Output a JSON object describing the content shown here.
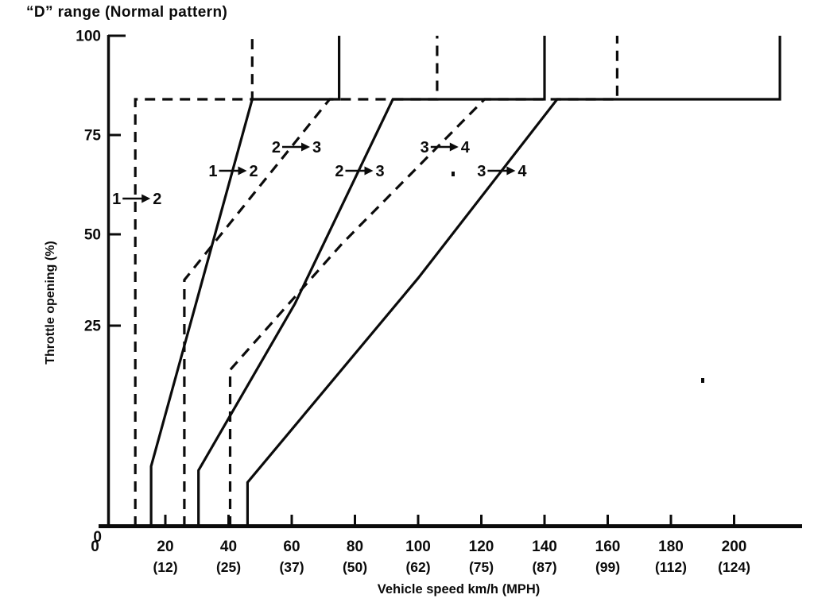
{
  "title": "“D” range (Normal pattern)",
  "colors": {
    "ink": "#0b0b0b",
    "paper": "#ffffff"
  },
  "chart_data": {
    "type": "line",
    "title": "“D” range (Normal pattern)",
    "xlabel": "Vehicle speed km/h (MPH)",
    "ylabel": "Throttle opening (%)",
    "xlim": [
      0,
      220
    ],
    "ylim": [
      0,
      100
    ],
    "grid": false,
    "legend": null,
    "x_ticks": [
      {
        "kmh": 0,
        "mph": null
      },
      {
        "kmh": 20,
        "mph": 12
      },
      {
        "kmh": 40,
        "mph": 25
      },
      {
        "kmh": 60,
        "mph": 37
      },
      {
        "kmh": 80,
        "mph": 50
      },
      {
        "kmh": 100,
        "mph": 62
      },
      {
        "kmh": 120,
        "mph": 75
      },
      {
        "kmh": 140,
        "mph": 87
      },
      {
        "kmh": 160,
        "mph": 99
      },
      {
        "kmh": 180,
        "mph": 112
      },
      {
        "kmh": 200,
        "mph": 124
      }
    ],
    "y_ticks": [
      25,
      50,
      75,
      100
    ],
    "y_origin_label": "0",
    "wot_throttle_pct": 84,
    "kickdown_top_pct": 100,
    "series": [
      {
        "name": "1→2 (dashed pattern)",
        "slug": "curve-1-2-dashed",
        "style": "dashed",
        "points": [
          [
            10.5,
            0
          ],
          [
            10.5,
            84
          ],
          [
            47.5,
            84
          ],
          [
            47.5,
            100
          ]
        ]
      },
      {
        "name": "1→2 (solid pattern)",
        "slug": "curve-1-2-solid",
        "style": "solid",
        "points": [
          [
            15.5,
            0
          ],
          [
            15.5,
            7.5
          ],
          [
            47.5,
            84
          ],
          [
            75,
            84
          ],
          [
            75,
            100
          ]
        ]
      },
      {
        "name": "2→3 (dashed pattern)",
        "slug": "curve-2-3-dashed",
        "style": "dashed",
        "points": [
          [
            26,
            0
          ],
          [
            26,
            37.5
          ],
          [
            72,
            84
          ],
          [
            106,
            84
          ],
          [
            106,
            100
          ]
        ]
      },
      {
        "name": "2→3 (solid pattern)",
        "slug": "curve-2-3-solid",
        "style": "solid",
        "points": [
          [
            30.5,
            0
          ],
          [
            30.5,
            7
          ],
          [
            61,
            31
          ],
          [
            92,
            84
          ],
          [
            140,
            84
          ],
          [
            140,
            100
          ]
        ]
      },
      {
        "name": "3→4 (dashed pattern)",
        "slug": "curve-3-4-dashed",
        "style": "dashed",
        "points": [
          [
            40.5,
            0
          ],
          [
            40.5,
            19.5
          ],
          [
            76,
            47.5
          ],
          [
            121,
            84
          ],
          [
            163,
            84
          ],
          [
            163,
            100
          ]
        ]
      },
      {
        "name": "3→4 (solid pattern)",
        "slug": "curve-3-4-solid",
        "style": "solid",
        "points": [
          [
            46,
            0
          ],
          [
            46,
            5.5
          ],
          [
            100,
            38
          ],
          [
            144,
            84
          ],
          [
            214.5,
            84
          ],
          [
            214.5,
            100
          ]
        ]
      }
    ],
    "shift_labels": [
      {
        "from": "1",
        "to": "2",
        "at": [
          10.5,
          59
        ]
      },
      {
        "from": "1",
        "to": "2",
        "at": [
          41,
          66
        ]
      },
      {
        "from": "2",
        "to": "3",
        "at": [
          61,
          72
        ]
      },
      {
        "from": "2",
        "to": "3",
        "at": [
          81,
          66
        ]
      },
      {
        "from": "3",
        "to": "4",
        "at": [
          108,
          72
        ]
      },
      {
        "from": "3",
        "to": "4",
        "at": [
          126,
          66
        ]
      }
    ]
  }
}
